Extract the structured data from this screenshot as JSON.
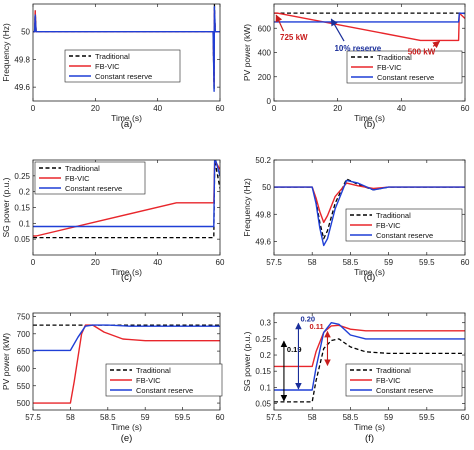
{
  "chart_data": [
    {
      "panel": "(a)",
      "type": "line",
      "xlabel": "Time (s)",
      "ylabel": "Frequency (Hz)",
      "xlim": [
        0,
        60
      ],
      "ylim": [
        49.5,
        50.2
      ],
      "xticks": [
        "0",
        "20",
        "40",
        "60"
      ],
      "yticks": [
        "49.6",
        "49.8",
        "50"
      ],
      "legend": {
        "placement": "bottom-right",
        "entries": [
          "Traditional",
          "FB-VIC",
          "Constant reserve"
        ]
      },
      "series": [
        {
          "name": "Traditional",
          "style": "dashed",
          "color": "#000000",
          "x": [
            0,
            0.5,
            0.7,
            1,
            57.8,
            58.1,
            58.2,
            58.5,
            60
          ],
          "y": [
            50,
            50,
            50.15,
            50,
            50,
            49.58,
            50.2,
            50,
            50
          ]
        },
        {
          "name": "FB-VIC",
          "style": "solid",
          "color": "#e8262b",
          "x": [
            0,
            0.5,
            0.7,
            1,
            57.8,
            58.1,
            58.2,
            58.5,
            60
          ],
          "y": [
            50,
            50,
            50.15,
            50,
            50,
            49.62,
            50.15,
            50,
            50
          ]
        },
        {
          "name": "Constant reserve",
          "style": "solid",
          "color": "#1f3fd6",
          "x": [
            0,
            0.5,
            0.7,
            1,
            57.8,
            58.1,
            58.2,
            58.5,
            60
          ],
          "y": [
            50,
            50,
            50.12,
            50,
            50,
            49.57,
            50.18,
            50,
            50
          ]
        }
      ]
    },
    {
      "panel": "(b)",
      "type": "line",
      "xlabel": "Time (s)",
      "ylabel": "PV power (kW)",
      "xlim": [
        0,
        60
      ],
      "ylim": [
        0,
        800
      ],
      "xticks": [
        "0",
        "20",
        "40",
        "60"
      ],
      "yticks": [
        "0",
        "200",
        "400",
        "600"
      ],
      "legend": {
        "placement": "bottom-right",
        "entries": [
          "Traditional",
          "FB-VIC",
          "Constant reserve"
        ]
      },
      "annotations": [
        "725 kW",
        "10% reserve",
        "500 kW"
      ],
      "series": [
        {
          "name": "Traditional",
          "style": "dashed",
          "color": "#000000",
          "x": [
            0,
            60
          ],
          "y": [
            725,
            725
          ]
        },
        {
          "name": "FB-VIC",
          "style": "solid",
          "color": "#e8262b",
          "x": [
            0,
            1,
            46,
            58,
            58.2,
            60
          ],
          "y": [
            725,
            725,
            500,
            500,
            725,
            680
          ]
        },
        {
          "name": "Constant reserve",
          "style": "solid",
          "color": "#1f3fd6",
          "x": [
            0,
            58,
            58.2,
            60
          ],
          "y": [
            652,
            652,
            725,
            722
          ]
        }
      ]
    },
    {
      "panel": "(c)",
      "type": "line",
      "xlabel": "Time (s)",
      "ylabel": "SG power (p.u.)",
      "xlim": [
        0,
        60
      ],
      "ylim": [
        0.0,
        0.3
      ],
      "xticks": [
        "0",
        "20",
        "40",
        "60"
      ],
      "yticks": [
        "0.05",
        "0.1",
        "0.15",
        "0.2",
        "0.25"
      ],
      "legend": {
        "placement": "top-left",
        "entries": [
          "Traditional",
          "FB-VIC",
          "Constant reserve"
        ]
      },
      "series": [
        {
          "name": "Traditional",
          "style": "dashed",
          "color": "#000000",
          "x": [
            0,
            58,
            58.3,
            60
          ],
          "y": [
            0.055,
            0.055,
            0.3,
            0.21
          ]
        },
        {
          "name": "FB-VIC",
          "style": "solid",
          "color": "#e8262b",
          "x": [
            0,
            1,
            46,
            58,
            58.3,
            60
          ],
          "y": [
            0.06,
            0.06,
            0.165,
            0.165,
            0.3,
            0.27
          ]
        },
        {
          "name": "Constant reserve",
          "style": "solid",
          "color": "#1f3fd6",
          "x": [
            0,
            58,
            58.3,
            60
          ],
          "y": [
            0.09,
            0.09,
            0.31,
            0.25
          ]
        }
      ]
    },
    {
      "panel": "(d)",
      "type": "line",
      "xlabel": "Time (s)",
      "ylabel": "Frequency (Hz)",
      "xlim": [
        57.5,
        60
      ],
      "ylim": [
        49.5,
        50.2
      ],
      "xticks": [
        "57.5",
        "58",
        "58.5",
        "59",
        "59.5",
        "60"
      ],
      "yticks": [
        "49.6",
        "49.8",
        "50",
        "50.2"
      ],
      "legend": {
        "placement": "bottom-right",
        "entries": [
          "Traditional",
          "FB-VIC",
          "Constant reserve"
        ]
      },
      "series": [
        {
          "name": "Traditional",
          "style": "dashed",
          "color": "#000000",
          "x": [
            57.5,
            58.0,
            58.05,
            58.1,
            58.15,
            58.2,
            58.3,
            58.45,
            58.6,
            58.8,
            59.0,
            60.0
          ],
          "y": [
            50,
            50,
            49.9,
            49.74,
            49.62,
            49.68,
            49.88,
            50.06,
            50.02,
            49.98,
            50,
            50
          ]
        },
        {
          "name": "FB-VIC",
          "style": "solid",
          "color": "#e8262b",
          "x": [
            57.5,
            58.0,
            58.05,
            58.1,
            58.15,
            58.2,
            58.3,
            58.45,
            58.6,
            58.8,
            59.0,
            60.0
          ],
          "y": [
            50,
            50,
            49.92,
            49.82,
            49.74,
            49.79,
            49.93,
            50.03,
            50.01,
            49.99,
            50,
            50
          ]
        },
        {
          "name": "Constant reserve",
          "style": "solid",
          "color": "#1f3fd6",
          "x": [
            57.5,
            58.0,
            58.05,
            58.1,
            58.15,
            58.2,
            58.3,
            58.45,
            58.6,
            58.8,
            59.0,
            60.0
          ],
          "y": [
            50,
            50,
            49.88,
            49.7,
            49.57,
            49.62,
            49.84,
            50.05,
            50.03,
            49.98,
            50,
            50
          ]
        }
      ]
    },
    {
      "panel": "(e)",
      "type": "line",
      "xlabel": "Time (s)",
      "ylabel": "PV power (kW)",
      "xlim": [
        57.5,
        60
      ],
      "ylim": [
        480,
        760
      ],
      "xticks": [
        "57.5",
        "58",
        "58.5",
        "59",
        "59.5",
        "60"
      ],
      "yticks": [
        "500",
        "550",
        "600",
        "650",
        "700",
        "750"
      ],
      "legend": {
        "placement": "bottom-right",
        "entries": [
          "Traditional",
          "FB-VIC",
          "Constant reserve"
        ]
      },
      "series": [
        {
          "name": "Traditional",
          "style": "dashed",
          "color": "#000000",
          "x": [
            57.5,
            60
          ],
          "y": [
            725,
            725
          ]
        },
        {
          "name": "FB-VIC",
          "style": "solid",
          "color": "#e8262b",
          "x": [
            57.5,
            58.0,
            58.05,
            58.15,
            58.2,
            58.3,
            58.45,
            58.7,
            59.0,
            60.0
          ],
          "y": [
            500,
            500,
            560,
            700,
            725,
            725,
            705,
            685,
            680,
            680
          ]
        },
        {
          "name": "Constant reserve",
          "style": "solid",
          "color": "#1f3fd6",
          "x": [
            57.5,
            58.0,
            58.1,
            58.2,
            58.3,
            58.5,
            58.8,
            59.0,
            60.0
          ],
          "y": [
            652,
            652,
            690,
            722,
            725,
            725,
            722,
            722,
            722
          ]
        }
      ]
    },
    {
      "panel": "(f)",
      "type": "line",
      "xlabel": "Time (s)",
      "ylabel": "SG power (p.u.)",
      "xlim": [
        57.5,
        60
      ],
      "ylim": [
        0.03,
        0.33
      ],
      "xticks": [
        "57.5",
        "58",
        "58.5",
        "59",
        "59.5",
        "60"
      ],
      "yticks": [
        "0.05",
        "0.1",
        "0.15",
        "0.2",
        "0.25",
        "0.3"
      ],
      "legend": {
        "placement": "bottom-right",
        "entries": [
          "Traditional",
          "FB-VIC",
          "Constant reserve"
        ]
      },
      "annotations": [
        "0.19",
        "0.20",
        "0.11"
      ],
      "series": [
        {
          "name": "Traditional",
          "style": "dashed",
          "color": "#000000",
          "x": [
            57.5,
            58.0,
            58.05,
            58.15,
            58.25,
            58.35,
            58.5,
            58.7,
            59.0,
            60.0
          ],
          "y": [
            0.055,
            0.055,
            0.12,
            0.22,
            0.245,
            0.25,
            0.225,
            0.21,
            0.205,
            0.205
          ]
        },
        {
          "name": "FB-VIC",
          "style": "solid",
          "color": "#e8262b",
          "x": [
            57.5,
            58.0,
            58.05,
            58.15,
            58.25,
            58.35,
            58.5,
            58.7,
            59.0,
            60.0
          ],
          "y": [
            0.165,
            0.165,
            0.21,
            0.27,
            0.29,
            0.292,
            0.28,
            0.275,
            0.275,
            0.275
          ]
        },
        {
          "name": "Constant reserve",
          "style": "solid",
          "color": "#1f3fd6",
          "x": [
            57.5,
            58.0,
            58.05,
            58.15,
            58.25,
            58.35,
            58.5,
            58.7,
            59.0,
            60.0
          ],
          "y": [
            0.092,
            0.092,
            0.16,
            0.27,
            0.3,
            0.295,
            0.262,
            0.25,
            0.25,
            0.25
          ]
        }
      ]
    }
  ]
}
